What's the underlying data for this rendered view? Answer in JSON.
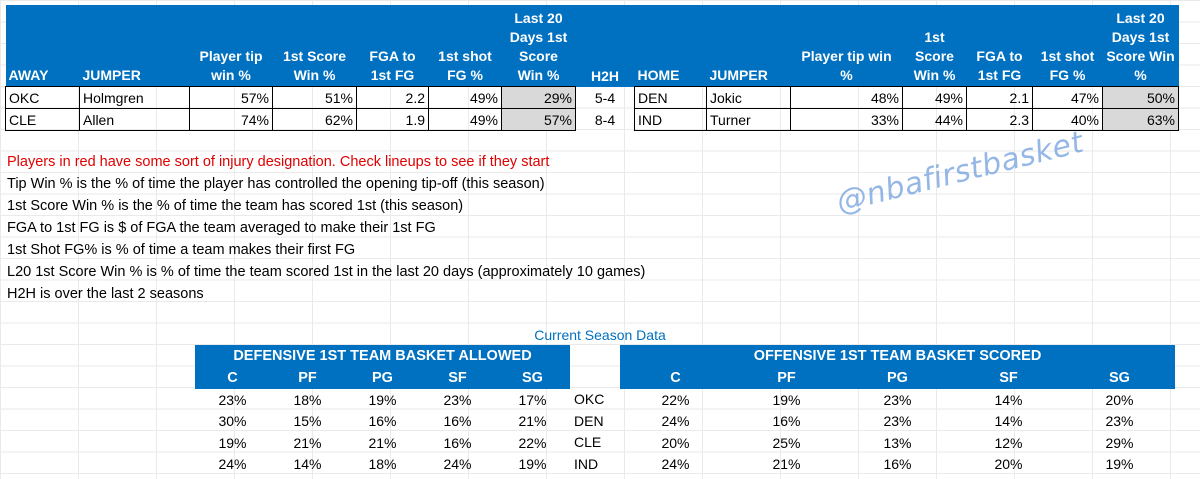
{
  "main_table": {
    "headers": {
      "away": "AWAY",
      "jumper": "JUMPER",
      "player_tip_win": "Player tip win %",
      "first_score_win": "1st Score Win %",
      "fga_to_first_fg": "FGA to 1st FG",
      "first_shot_fg": "1st shot FG %",
      "last20_first_score_win": "Last 20 Days 1st Score Win %",
      "h2h": "H2H",
      "home": "HOME",
      "jumper_home": "JUMPER",
      "player_tip_win_home": "Player tip win %",
      "first_score_win_home": "1st Score Win %",
      "fga_to_first_fg_home": "FGA to 1st FG",
      "first_shot_fg_home": "1st shot FG %",
      "last20_first_score_win_home": "Last 20 Days 1st Score Win %"
    },
    "rows": [
      {
        "away": "OKC",
        "jumper": "Holmgren",
        "tip": "57%",
        "score": "51%",
        "fga": "2.2",
        "shot": "49%",
        "l20": "29%",
        "h2h": "5-4",
        "home": "DEN",
        "jumper_home": "Jokic",
        "tip_home": "48%",
        "score_home": "49%",
        "fga_home": "2.1",
        "shot_home": "47%",
        "l20_home": "50%"
      },
      {
        "away": "CLE",
        "jumper": "Allen",
        "tip": "74%",
        "score": "62%",
        "fga": "1.9",
        "shot": "49%",
        "l20": "57%",
        "h2h": "8-4",
        "home": "IND",
        "jumper_home": "Turner",
        "tip_home": "33%",
        "score_home": "44%",
        "fga_home": "2.3",
        "shot_home": "40%",
        "l20_home": "63%"
      }
    ]
  },
  "notes": {
    "injury": "Players in red have some sort of injury designation.  Check lineups to see if they start",
    "tip_win": "Tip Win % is the % of time the player has controlled the opening tip-off (this season)",
    "score_win": "1st Score Win % is the % of time the team has scored 1st (this season)",
    "fga": "FGA to 1st FG is $ of FGA the team averaged to make their 1st FG",
    "shot_fg": "1st Shot FG% is % of time a team makes their first FG",
    "l20": "L20 1st Score Win % is % of time the team scored 1st in the last 20 days (approximately 10 games)",
    "h2h": "H2H is over the last 2 seasons"
  },
  "watermark": "@nbafirstbasket",
  "season_title": "Current Season Data",
  "defense": {
    "title": "DEFENSIVE 1ST TEAM  BASKET ALLOWED",
    "positions": [
      "C",
      "PF",
      "PG",
      "SF",
      "SG"
    ],
    "rows": [
      [
        "23%",
        "18%",
        "19%",
        "23%",
        "17%"
      ],
      [
        "30%",
        "15%",
        "16%",
        "16%",
        "21%"
      ],
      [
        "19%",
        "21%",
        "21%",
        "16%",
        "22%"
      ],
      [
        "24%",
        "14%",
        "18%",
        "24%",
        "19%"
      ]
    ]
  },
  "teams": [
    "OKC",
    "DEN",
    "CLE",
    "IND"
  ],
  "offense": {
    "title": "OFFENSIVE 1ST TEAM BASKET SCORED",
    "positions": [
      "C",
      "PF",
      "PG",
      "SF",
      "SG"
    ],
    "rows": [
      [
        "22%",
        "19%",
        "23%",
        "14%",
        "20%"
      ],
      [
        "24%",
        "16%",
        "23%",
        "14%",
        "23%"
      ],
      [
        "20%",
        "25%",
        "13%",
        "12%",
        "29%"
      ],
      [
        "24%",
        "21%",
        "16%",
        "20%",
        "19%"
      ]
    ]
  },
  "colors": {
    "header_blue": "#0070c0",
    "highlight_gray": "#d9d9d9",
    "injury_red": "#e00000",
    "watermark": "#7ba6e0"
  }
}
